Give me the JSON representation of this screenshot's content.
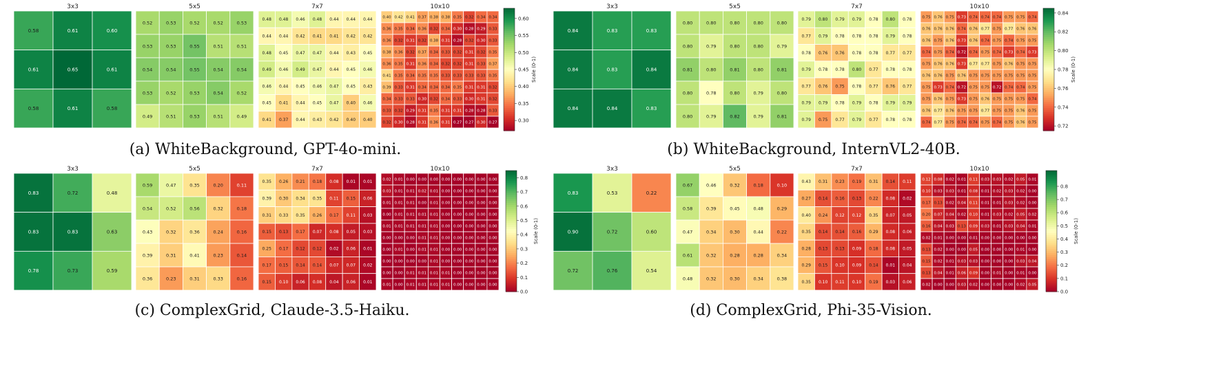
{
  "panels": [
    {
      "caption": "(a) WhiteBackground, GPT-4o-mini.",
      "colorbar": {
        "label": "Scale (0-1)",
        "min": 0.27,
        "max": 0.63,
        "ticks": [
          0.3,
          0.35,
          0.4,
          0.45,
          0.5,
          0.55,
          0.6
        ]
      },
      "grids": [
        {
          "title": "3x3",
          "values": [
            [
              0.58,
              0.61,
              0.6
            ],
            [
              0.61,
              0.65,
              0.61
            ],
            [
              0.58,
              0.61,
              0.58
            ]
          ]
        },
        {
          "title": "5x5",
          "values": [
            [
              0.52,
              0.53,
              0.52,
              0.52,
              0.53
            ],
            [
              0.53,
              0.53,
              0.55,
              0.51,
              0.51
            ],
            [
              0.54,
              0.54,
              0.55,
              0.54,
              0.54
            ],
            [
              0.53,
              0.52,
              0.53,
              0.54,
              0.52
            ],
            [
              0.49,
              0.51,
              0.53,
              0.51,
              0.49
            ]
          ]
        },
        {
          "title": "7x7",
          "values": [
            [
              0.48,
              0.48,
              0.46,
              0.48,
              0.44,
              0.44,
              0.44
            ],
            [
              0.44,
              0.44,
              0.42,
              0.41,
              0.41,
              0.42,
              0.42
            ],
            [
              0.48,
              0.45,
              0.47,
              0.47,
              0.44,
              0.43,
              0.45
            ],
            [
              0.49,
              0.46,
              0.49,
              0.47,
              0.44,
              0.45,
              0.46
            ],
            [
              0.46,
              0.44,
              0.45,
              0.46,
              0.47,
              0.45,
              0.43
            ],
            [
              0.45,
              0.41,
              0.44,
              0.45,
              0.47,
              0.4,
              0.46
            ],
            [
              0.41,
              0.37,
              0.44,
              0.43,
              0.42,
              0.4,
              0.4
            ]
          ]
        },
        {
          "title": "10x10",
          "values": [
            [
              0.4,
              0.42,
              0.41,
              0.37,
              0.38,
              0.38,
              0.35,
              0.32,
              0.34,
              0.34
            ],
            [
              0.36,
              0.35,
              0.34,
              0.36,
              0.32,
              0.34,
              0.3,
              0.28,
              0.29,
              0.33
            ],
            [
              0.36,
              0.32,
              0.31,
              0.32,
              0.38,
              0.31,
              0.28,
              0.32,
              0.3,
              0.33
            ],
            [
              0.38,
              0.36,
              0.32,
              0.37,
              0.34,
              0.33,
              0.32,
              0.31,
              0.32,
              0.35
            ],
            [
              0.36,
              0.35,
              0.31,
              0.36,
              0.34,
              0.32,
              0.32,
              0.31,
              0.33,
              0.37
            ],
            [
              0.41,
              0.35,
              0.34,
              0.35,
              0.35,
              0.33,
              0.33,
              0.33,
              0.33,
              0.35
            ],
            [
              0.39,
              0.33,
              0.31,
              0.34,
              0.34,
              0.34,
              0.35,
              0.31,
              0.31,
              0.32
            ],
            [
              0.34,
              0.33,
              0.33,
              0.3,
              0.32,
              0.34,
              0.33,
              0.3,
              0.31,
              0.32
            ],
            [
              0.33,
              0.32,
              0.29,
              0.31,
              0.35,
              0.31,
              0.31,
              0.28,
              0.28,
              0.33
            ],
            [
              0.32,
              0.3,
              0.28,
              0.31,
              0.36,
              0.31,
              0.27,
              0.27,
              0.3,
              0.27
            ]
          ]
        }
      ]
    },
    {
      "caption": "(b) WhiteBackground, InternVL2-40B.",
      "colorbar": {
        "label": "Scale (0-1)",
        "min": 0.715,
        "max": 0.845,
        "ticks": [
          0.72,
          0.74,
          0.76,
          0.78,
          0.8,
          0.82,
          0.84
        ]
      },
      "grids": [
        {
          "title": "3x3",
          "values": [
            [
              0.84,
              0.83,
              0.83
            ],
            [
              0.84,
              0.83,
              0.84
            ],
            [
              0.84,
              0.84,
              0.83
            ]
          ]
        },
        {
          "title": "5x5",
          "values": [
            [
              0.8,
              0.8,
              0.8,
              0.8,
              0.8
            ],
            [
              0.8,
              0.79,
              0.8,
              0.8,
              0.79
            ],
            [
              0.81,
              0.8,
              0.81,
              0.8,
              0.81
            ],
            [
              0.8,
              0.78,
              0.8,
              0.79,
              0.8
            ],
            [
              0.8,
              0.79,
              0.82,
              0.79,
              0.81
            ]
          ]
        },
        {
          "title": "7x7",
          "values": [
            [
              0.79,
              0.8,
              0.79,
              0.79,
              0.78,
              0.8,
              0.78
            ],
            [
              0.77,
              0.79,
              0.78,
              0.78,
              0.78,
              0.79,
              0.78
            ],
            [
              0.78,
              0.76,
              0.76,
              0.78,
              0.78,
              0.77,
              0.77
            ],
            [
              0.79,
              0.78,
              0.78,
              0.8,
              0.77,
              0.78,
              0.78
            ],
            [
              0.77,
              0.76,
              0.75,
              0.78,
              0.77,
              0.76,
              0.77
            ],
            [
              0.79,
              0.79,
              0.78,
              0.79,
              0.78,
              0.79,
              0.79
            ],
            [
              0.79,
              0.75,
              0.77,
              0.79,
              0.77,
              0.78,
              0.78
            ]
          ]
        },
        {
          "title": "10x10",
          "values": [
            [
              0.75,
              0.76,
              0.75,
              0.73,
              0.74,
              0.74,
              0.74,
              0.75,
              0.75,
              0.74
            ],
            [
              0.76,
              0.76,
              0.76,
              0.74,
              0.76,
              0.77,
              0.75,
              0.77,
              0.76,
              0.76
            ],
            [
              0.76,
              0.75,
              0.76,
              0.73,
              0.76,
              0.74,
              0.75,
              0.74,
              0.75,
              0.75
            ],
            [
              0.74,
              0.75,
              0.74,
              0.72,
              0.74,
              0.75,
              0.74,
              0.73,
              0.74,
              0.73
            ],
            [
              0.75,
              0.76,
              0.76,
              0.73,
              0.77,
              0.77,
              0.75,
              0.76,
              0.75,
              0.75
            ],
            [
              0.76,
              0.76,
              0.75,
              0.76,
              0.75,
              0.75,
              0.75,
              0.75,
              0.75,
              0.75
            ],
            [
              0.75,
              0.73,
              0.74,
              0.72,
              0.75,
              0.75,
              0.72,
              0.74,
              0.74,
              0.75
            ],
            [
              0.75,
              0.76,
              0.75,
              0.73,
              0.75,
              0.76,
              0.75,
              0.75,
              0.75,
              0.74
            ],
            [
              0.76,
              0.77,
              0.76,
              0.75,
              0.75,
              0.77,
              0.75,
              0.75,
              0.76,
              0.75
            ],
            [
              0.74,
              0.77,
              0.75,
              0.74,
              0.74,
              0.75,
              0.74,
              0.75,
              0.76,
              0.75
            ]
          ]
        }
      ]
    },
    {
      "caption": "(c) ComplexGrid, Claude-3.5-Haiku.",
      "colorbar": {
        "label": "Scale (0-1)",
        "min": 0.0,
        "max": 0.85,
        "ticks": [
          0.0,
          0.1,
          0.2,
          0.3,
          0.4,
          0.5,
          0.6,
          0.7,
          0.8
        ]
      },
      "grids": [
        {
          "title": "3x3",
          "values": [
            [
              0.83,
              0.72,
              0.48
            ],
            [
              0.83,
              0.83,
              0.63
            ],
            [
              0.78,
              0.73,
              0.59
            ]
          ]
        },
        {
          "title": "5x5",
          "values": [
            [
              0.59,
              0.47,
              0.35,
              0.2,
              0.11
            ],
            [
              0.54,
              0.52,
              0.56,
              0.32,
              0.18
            ],
            [
              0.43,
              0.32,
              0.36,
              0.24,
              0.16
            ],
            [
              0.39,
              0.31,
              0.41,
              0.23,
              0.14
            ],
            [
              0.36,
              0.23,
              0.31,
              0.33,
              0.16
            ]
          ]
        },
        {
          "title": "7x7",
          "values": [
            [
              0.35,
              0.26,
              0.21,
              0.18,
              0.08,
              0.01,
              0.01
            ],
            [
              0.39,
              0.3,
              0.34,
              0.35,
              0.11,
              0.15,
              0.06
            ],
            [
              0.31,
              0.33,
              0.35,
              0.26,
              0.17,
              0.11,
              0.03
            ],
            [
              0.15,
              0.13,
              0.17,
              0.07,
              0.08,
              0.05,
              0.03
            ],
            [
              0.25,
              0.17,
              0.12,
              0.12,
              0.02,
              0.06,
              0.01
            ],
            [
              0.17,
              0.15,
              0.14,
              0.14,
              0.07,
              0.07,
              0.02
            ],
            [
              0.15,
              0.1,
              0.06,
              0.08,
              0.04,
              0.06,
              0.01
            ]
          ]
        },
        {
          "title": "10x10",
          "values": [
            [
              0.02,
              0.01,
              0.0,
              0.0,
              0.0,
              0.0,
              0.0,
              0.0,
              0.0,
              0.0
            ],
            [
              0.03,
              0.01,
              0.01,
              0.02,
              0.01,
              0.0,
              0.0,
              0.0,
              0.0,
              0.0
            ],
            [
              0.01,
              0.01,
              0.01,
              0.0,
              0.01,
              0.0,
              0.0,
              0.0,
              0.0,
              0.0
            ],
            [
              0.0,
              0.01,
              0.01,
              0.01,
              0.01,
              0.0,
              0.0,
              0.0,
              0.0,
              0.0
            ],
            [
              0.01,
              0.01,
              0.01,
              0.01,
              0.01,
              0.0,
              0.0,
              0.0,
              0.0,
              0.0
            ],
            [
              0.0,
              0.0,
              0.0,
              0.01,
              0.01,
              0.0,
              0.0,
              0.0,
              0.0,
              0.0
            ],
            [
              0.0,
              0.01,
              0.0,
              0.01,
              0.01,
              0.0,
              0.0,
              0.0,
              0.0,
              0.0
            ],
            [
              0.0,
              0.0,
              0.0,
              0.0,
              0.01,
              0.0,
              0.0,
              0.0,
              0.0,
              0.0
            ],
            [
              0.0,
              0.0,
              0.01,
              0.01,
              0.01,
              0.01,
              0.0,
              0.0,
              0.0,
              0.0
            ],
            [
              0.01,
              0.0,
              0.01,
              0.01,
              0.01,
              0.01,
              0.0,
              0.0,
              0.0,
              0.0
            ]
          ]
        }
      ]
    },
    {
      "caption": "(d) ComplexGrid, Phi-35-Vision.",
      "colorbar": {
        "label": "Scale (0-1)",
        "min": 0.0,
        "max": 0.92,
        "ticks": [
          0.0,
          0.1,
          0.2,
          0.3,
          0.4,
          0.5,
          0.6,
          0.7,
          0.8
        ]
      },
      "grids": [
        {
          "title": "3x3",
          "values": [
            [
              0.83,
              0.53,
              0.22
            ],
            [
              0.9,
              0.72,
              0.6
            ],
            [
              0.72,
              0.76,
              0.54
            ]
          ]
        },
        {
          "title": "5x5",
          "values": [
            [
              0.67,
              0.46,
              0.32,
              0.18,
              0.1
            ],
            [
              0.58,
              0.39,
              0.45,
              0.48,
              0.29
            ],
            [
              0.47,
              0.34,
              0.3,
              0.44,
              0.22
            ],
            [
              0.61,
              0.32,
              0.28,
              0.28,
              0.34
            ],
            [
              0.48,
              0.32,
              0.3,
              0.34,
              0.38
            ]
          ]
        },
        {
          "title": "7x7",
          "values": [
            [
              0.43,
              0.31,
              0.23,
              0.19,
              0.31,
              0.14,
              0.11
            ],
            [
              0.27,
              0.14,
              0.16,
              0.13,
              0.22,
              0.08,
              0.02
            ],
            [
              0.4,
              0.24,
              0.12,
              0.12,
              0.35,
              0.07,
              0.05
            ],
            [
              0.35,
              0.14,
              0.14,
              0.16,
              0.29,
              0.08,
              0.06
            ],
            [
              0.28,
              0.13,
              0.13,
              0.09,
              0.18,
              0.08,
              0.05
            ],
            [
              0.29,
              0.15,
              0.1,
              0.09,
              0.14,
              0.01,
              0.04
            ],
            [
              0.35,
              0.1,
              0.11,
              0.1,
              0.19,
              0.03,
              0.06
            ]
          ]
        },
        {
          "title": "10x10",
          "values": [
            [
              0.12,
              0.08,
              0.02,
              0.01,
              0.11,
              0.03,
              0.03,
              0.02,
              0.05,
              0.01
            ],
            [
              0.1,
              0.03,
              0.03,
              0.01,
              0.08,
              0.01,
              0.02,
              0.03,
              0.02,
              0.0
            ],
            [
              0.17,
              0.13,
              0.02,
              0.04,
              0.11,
              0.01,
              0.01,
              0.03,
              0.02,
              0.0
            ],
            [
              0.2,
              0.07,
              0.04,
              0.02,
              0.1,
              0.01,
              0.03,
              0.02,
              0.05,
              0.02
            ],
            [
              0.16,
              0.04,
              0.03,
              0.13,
              0.09,
              0.03,
              0.01,
              0.03,
              0.04,
              0.01
            ],
            [
              0.02,
              0.01,
              0.0,
              0.0,
              0.01,
              0.0,
              0.0,
              0.0,
              0.0,
              0.0
            ],
            [
              0.13,
              0.02,
              0.0,
              0.0,
              0.05,
              0.0,
              0.0,
              0.0,
              0.01,
              0.0
            ],
            [
              0.15,
              0.02,
              0.01,
              0.03,
              0.03,
              0.0,
              0.0,
              0.0,
              0.03,
              0.04
            ],
            [
              0.13,
              0.04,
              0.01,
              0.06,
              0.09,
              0.0,
              0.01,
              0.0,
              0.01,
              0.0
            ],
            [
              0.02,
              0.0,
              0.0,
              0.03,
              0.02,
              0.0,
              0.0,
              0.0,
              0.02,
              0.05
            ]
          ]
        }
      ]
    }
  ]
}
